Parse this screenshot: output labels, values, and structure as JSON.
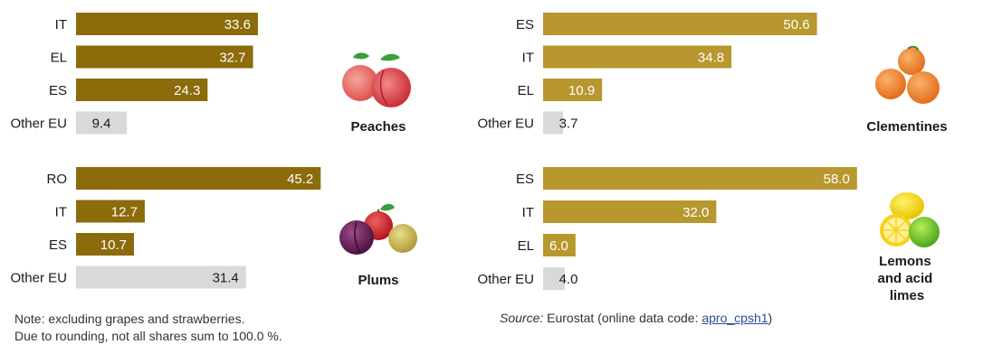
{
  "colors": {
    "peaches_plums": "#8b6b0a",
    "citrus": "#b8972f",
    "other_eu": "#d8d9db",
    "label_on_dark": "#ffffff",
    "label_on_light": "#1a1a1a"
  },
  "chart_data": [
    {
      "type": "bar",
      "orientation": "horizontal",
      "title": "Peaches",
      "categories": [
        "IT",
        "EL",
        "ES",
        "Other EU"
      ],
      "values": [
        33.6,
        32.7,
        24.3,
        9.4
      ],
      "icon": "peach-icon"
    },
    {
      "type": "bar",
      "orientation": "horizontal",
      "title": "Clementines",
      "categories": [
        "ES",
        "IT",
        "EL",
        "Other EU"
      ],
      "values": [
        50.6,
        34.8,
        10.9,
        3.7
      ],
      "icon": "clementine-icon"
    },
    {
      "type": "bar",
      "orientation": "horizontal",
      "title": "Plums",
      "categories": [
        "RO",
        "IT",
        "ES",
        "Other EU"
      ],
      "values": [
        45.2,
        12.7,
        10.7,
        31.4
      ],
      "icon": "plum-icon"
    },
    {
      "type": "bar",
      "orientation": "horizontal",
      "title": "Lemons and acid limes",
      "title_lines": [
        "Lemons",
        "and acid",
        "limes"
      ],
      "categories": [
        "ES",
        "IT",
        "EL",
        "Other EU"
      ],
      "values": [
        58.0,
        32.0,
        6.0,
        4.0
      ],
      "icon": "lemon-lime-icon"
    }
  ],
  "notes": {
    "line1": "Note: excluding grapes and strawberries.",
    "line2": "Due to rounding, not all shares sum to 100.0 %."
  },
  "source": {
    "label": "Source:",
    "text": " Eurostat (online data code: ",
    "code": "apro_cpsh1",
    "close": ")"
  }
}
